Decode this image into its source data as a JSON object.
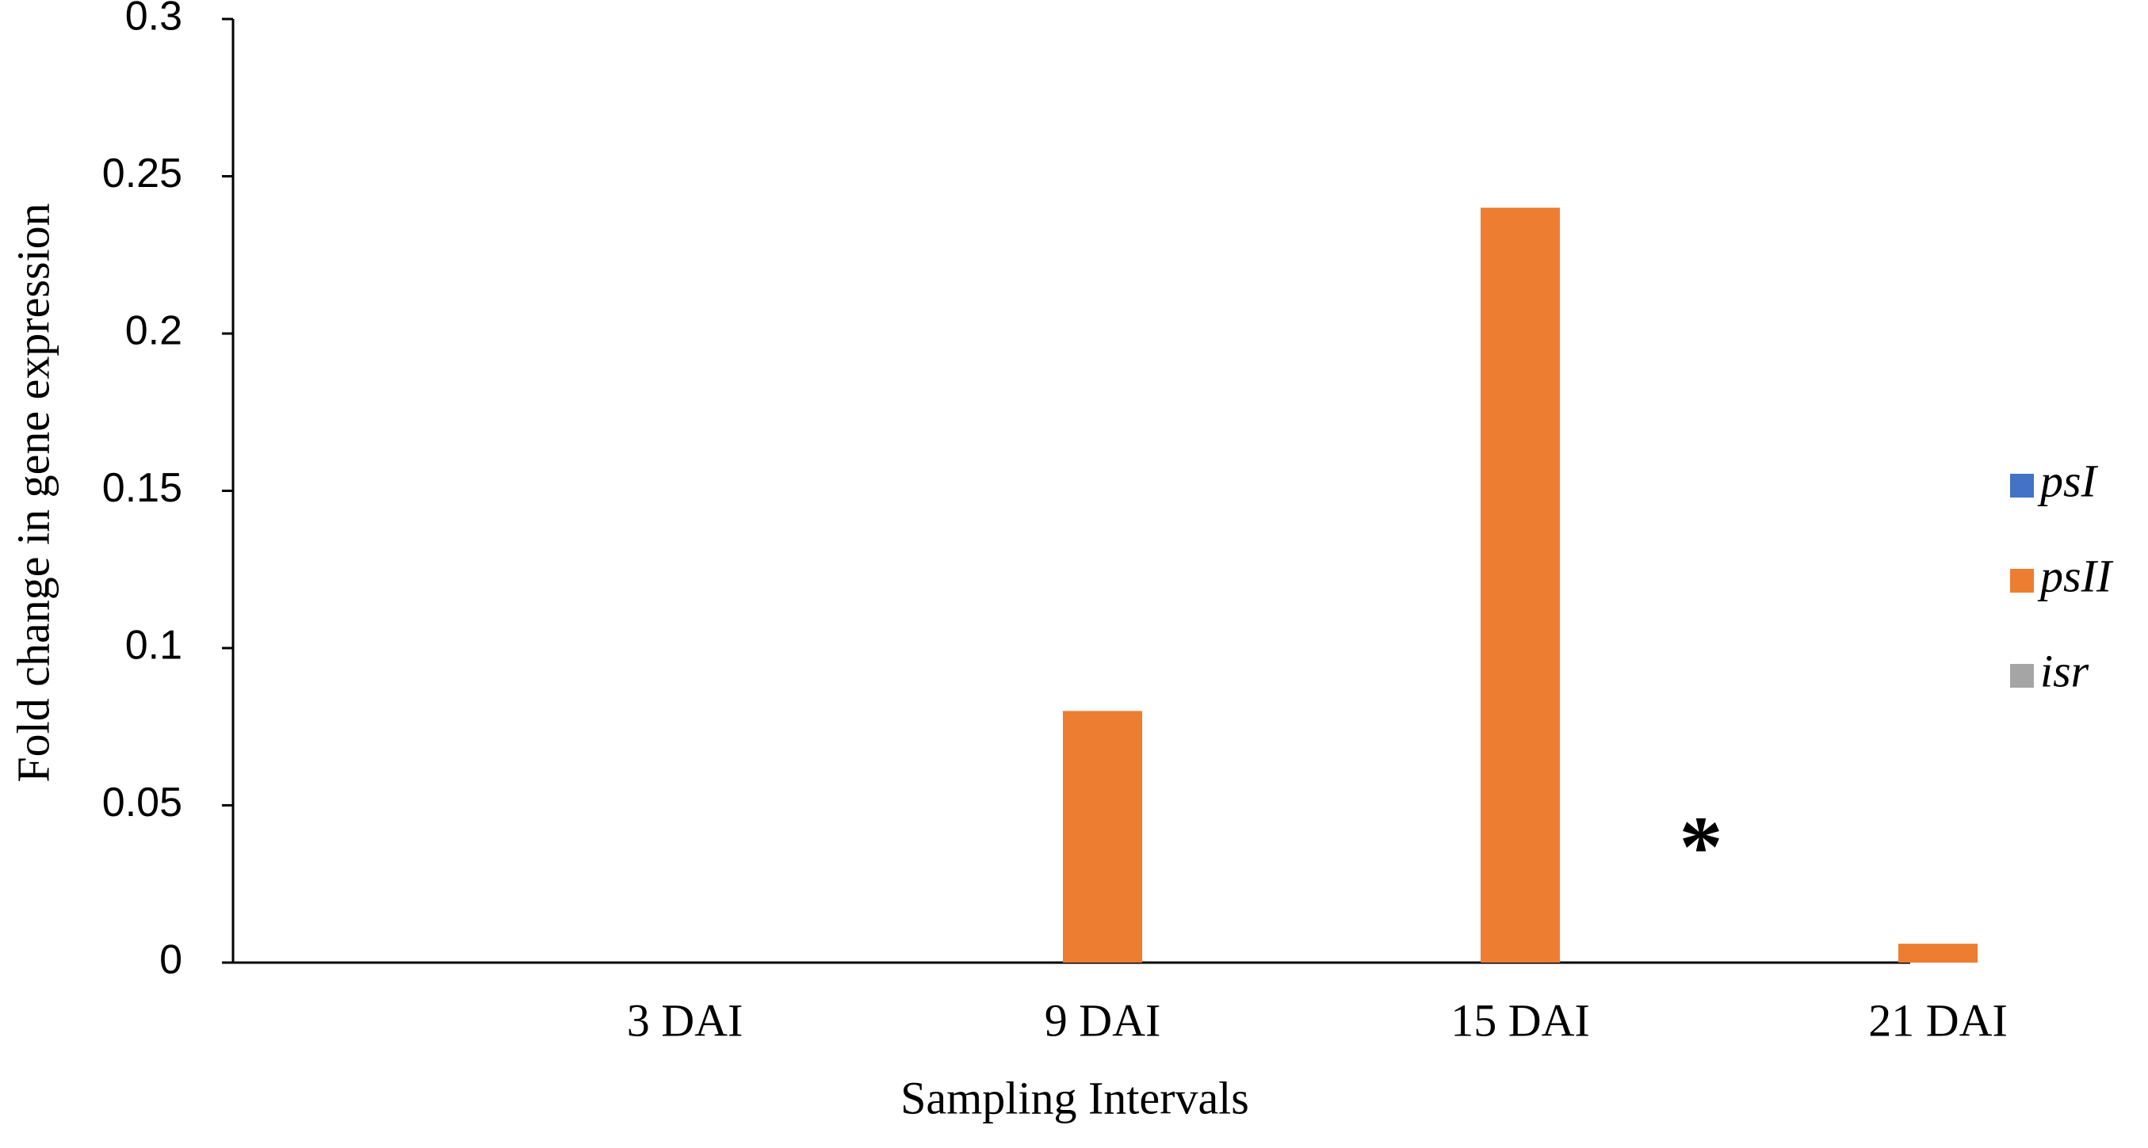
{
  "chart_data": {
    "type": "bar",
    "x_label": "Sampling Intervals",
    "y_label": "Fold change in gene expression",
    "categories": [
      "3 DAI",
      "9 DAI",
      "15 DAI",
      "21 DAI"
    ],
    "series": [
      {
        "name": "psI",
        "color": "#4472c4",
        "values": [
          0,
          0,
          0,
          0
        ]
      },
      {
        "name": "psII",
        "color": "#ed7d31",
        "values": [
          0,
          0.08,
          0.24,
          0.006
        ]
      },
      {
        "name": "isr",
        "color": "#a5a5a5",
        "values": [
          0,
          0,
          0,
          0
        ]
      }
    ],
    "annotation": "*",
    "ylim": [
      0,
      0.3
    ],
    "yticks": [
      0,
      0.05,
      0.1,
      0.15,
      0.2,
      0.25,
      0.3
    ],
    "grid": false,
    "legend": "right"
  }
}
